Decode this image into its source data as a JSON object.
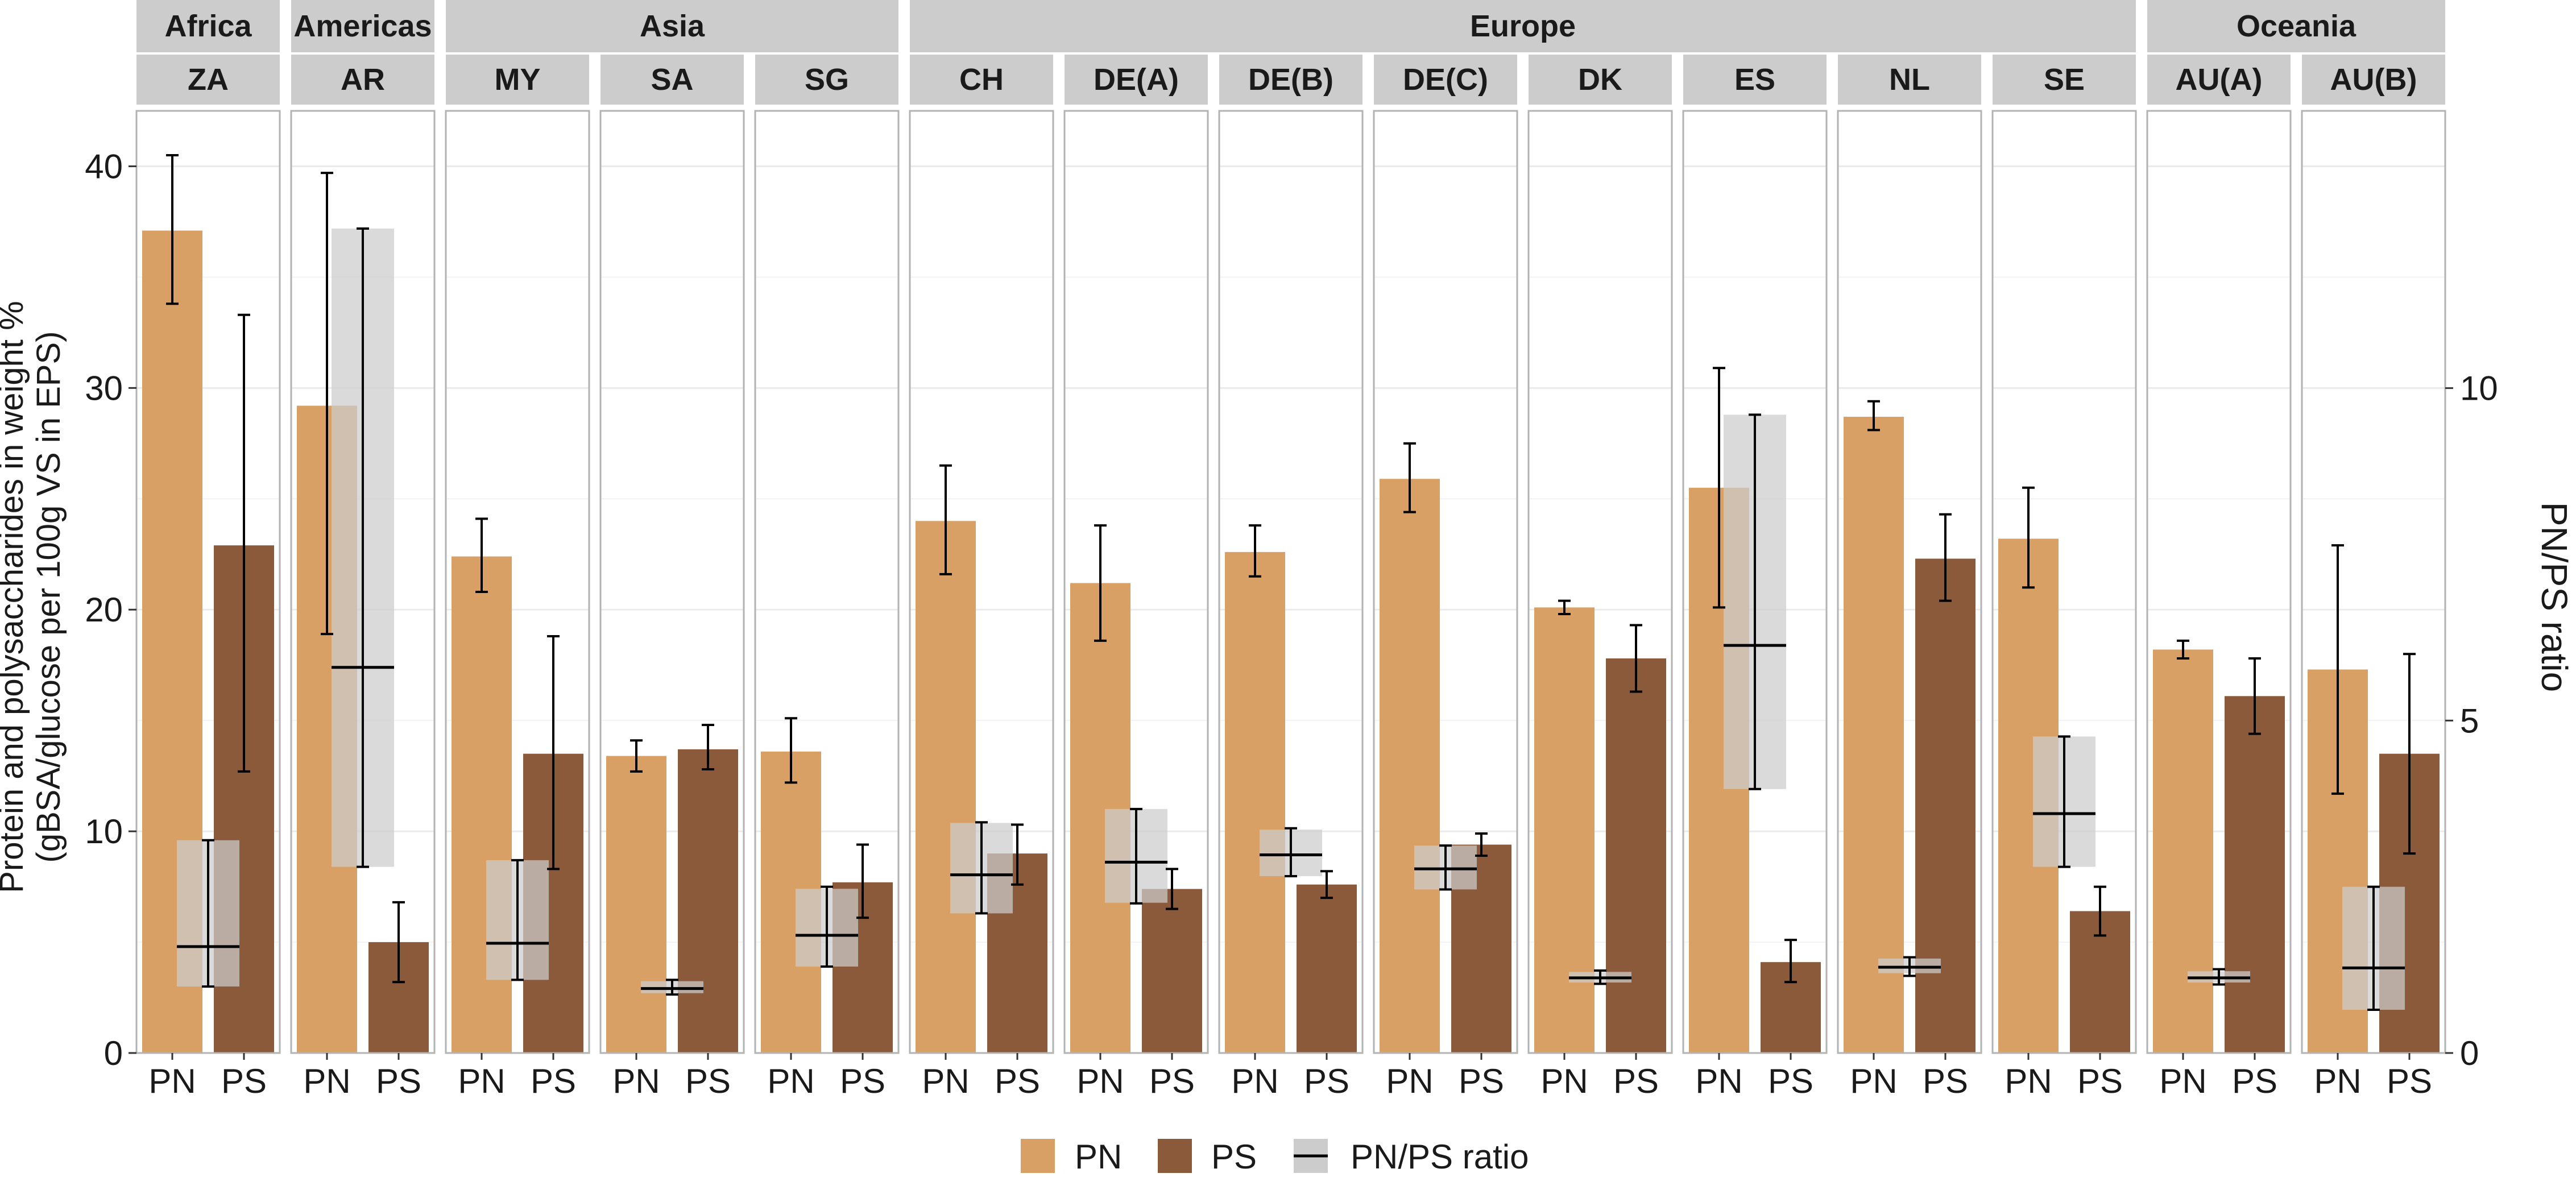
{
  "chart_data": {
    "type": "bar",
    "categories": [
      "PN",
      "PS"
    ],
    "ylabel_lines": [
      "Protein and polysaccharides in weight %",
      "(gBSA/glucose per 100g VS in EPS)"
    ],
    "y2label": "PN/PS ratio",
    "ylim": [
      0,
      42.5
    ],
    "yticks": [
      0,
      10,
      20,
      30,
      40
    ],
    "y2lim": [
      0,
      14.17
    ],
    "y2ticks": [
      0,
      5,
      10
    ],
    "colors": {
      "PN": "#d9a066",
      "PS": "#8b5a3a",
      "ratio": "#cccccc",
      "strip": "#cccccc",
      "panel_border": "#b3b3b3",
      "grid": "#ebebeb"
    },
    "legend": {
      "position": "bottom",
      "items": [
        {
          "key": "PN",
          "label": "PN"
        },
        {
          "key": "PS",
          "label": "PS"
        },
        {
          "key": "ratio",
          "label": "PN/PS ratio"
        }
      ]
    },
    "groups": [
      {
        "name": "Africa",
        "sites": [
          "ZA"
        ]
      },
      {
        "name": "Americas",
        "sites": [
          "AR"
        ]
      },
      {
        "name": "Asia",
        "sites": [
          "MY",
          "SA",
          "SG"
        ]
      },
      {
        "name": "Europe",
        "sites": [
          "CH",
          "DE(A)",
          "DE(B)",
          "DE(C)",
          "DK",
          "ES",
          "NL",
          "SE"
        ]
      },
      {
        "name": "Oceania",
        "sites": [
          "AU(A)",
          "AU(B)"
        ]
      }
    ],
    "sites": [
      {
        "name": "ZA",
        "PN": 37.1,
        "PN_err": [
          33.8,
          40.5
        ],
        "PS": 22.9,
        "PS_err": [
          12.7,
          33.3
        ],
        "ratio": 1.6,
        "ratio_box": [
          1.0,
          3.2
        ],
        "ratio_err": [
          1.0,
          3.2
        ]
      },
      {
        "name": "AR",
        "PN": 29.2,
        "PN_err": [
          18.9,
          39.7
        ],
        "PS": 5.0,
        "PS_err": [
          3.2,
          6.8
        ],
        "ratio": 5.8,
        "ratio_box": [
          2.8,
          12.4
        ],
        "ratio_err": [
          2.8,
          12.4
        ]
      },
      {
        "name": "MY",
        "PN": 22.4,
        "PN_err": [
          20.8,
          24.1
        ],
        "PS": 13.5,
        "PS_err": [
          8.3,
          18.8
        ],
        "ratio": 1.65,
        "ratio_box": [
          1.1,
          2.9
        ],
        "ratio_err": [
          1.1,
          2.9
        ]
      },
      {
        "name": "SA",
        "PN": 13.4,
        "PN_err": [
          12.7,
          14.1
        ],
        "PS": 13.7,
        "PS_err": [
          12.8,
          14.8
        ],
        "ratio": 0.97,
        "ratio_box": [
          0.9,
          1.08
        ],
        "ratio_err": [
          0.88,
          1.1
        ]
      },
      {
        "name": "SG",
        "PN": 13.6,
        "PN_err": [
          12.2,
          15.1
        ],
        "PS": 7.7,
        "PS_err": [
          6.1,
          9.4
        ],
        "ratio": 1.77,
        "ratio_box": [
          1.3,
          2.47
        ],
        "ratio_err": [
          1.3,
          2.5
        ]
      },
      {
        "name": "CH",
        "PN": 24.0,
        "PN_err": [
          21.6,
          26.5
        ],
        "PS": 9.0,
        "PS_err": [
          7.6,
          10.3
        ],
        "ratio": 2.68,
        "ratio_box": [
          2.1,
          3.46
        ],
        "ratio_err": [
          2.1,
          3.47
        ]
      },
      {
        "name": "DE(A)",
        "PN": 21.2,
        "PN_err": [
          18.6,
          23.8
        ],
        "PS": 7.4,
        "PS_err": [
          6.5,
          8.3
        ],
        "ratio": 2.87,
        "ratio_box": [
          2.26,
          3.67
        ],
        "ratio_err": [
          2.25,
          3.67
        ]
      },
      {
        "name": "DE(B)",
        "PN": 22.6,
        "PN_err": [
          21.5,
          23.8
        ],
        "PS": 7.6,
        "PS_err": [
          7.0,
          8.2
        ],
        "ratio": 2.98,
        "ratio_box": [
          2.66,
          3.36
        ],
        "ratio_err": [
          2.66,
          3.38
        ]
      },
      {
        "name": "DE(C)",
        "PN": 25.9,
        "PN_err": [
          24.4,
          27.5
        ],
        "PS": 9.4,
        "PS_err": [
          8.9,
          9.9
        ],
        "ratio": 2.77,
        "ratio_box": [
          2.46,
          3.12
        ],
        "ratio_err": [
          2.46,
          3.12
        ]
      },
      {
        "name": "DK",
        "PN": 20.1,
        "PN_err": [
          19.8,
          20.4
        ],
        "PS": 17.8,
        "PS_err": [
          16.3,
          19.3
        ],
        "ratio": 1.13,
        "ratio_box": [
          1.06,
          1.22
        ],
        "ratio_err": [
          1.04,
          1.24
        ]
      },
      {
        "name": "ES",
        "PN": 25.5,
        "PN_err": [
          20.1,
          30.9
        ],
        "PS": 4.1,
        "PS_err": [
          3.2,
          5.1
        ],
        "ratio": 6.13,
        "ratio_box": [
          3.97,
          9.6
        ],
        "ratio_err": [
          3.97,
          9.6
        ]
      },
      {
        "name": "NL",
        "PN": 28.7,
        "PN_err": [
          28.1,
          29.4
        ],
        "PS": 22.3,
        "PS_err": [
          20.4,
          24.3
        ],
        "ratio": 1.29,
        "ratio_box": [
          1.2,
          1.42
        ],
        "ratio_err": [
          1.16,
          1.44
        ]
      },
      {
        "name": "SE",
        "PN": 23.2,
        "PN_err": [
          21.0,
          25.5
        ],
        "PS": 6.4,
        "PS_err": [
          5.3,
          7.5
        ],
        "ratio": 3.6,
        "ratio_box": [
          2.8,
          4.76
        ],
        "ratio_err": [
          2.8,
          4.76
        ]
      },
      {
        "name": "AU(A)",
        "PN": 18.2,
        "PN_err": [
          17.8,
          18.6
        ],
        "PS": 16.1,
        "PS_err": [
          14.4,
          17.8
        ],
        "ratio": 1.13,
        "ratio_box": [
          1.06,
          1.23
        ],
        "ratio_err": [
          1.03,
          1.26
        ]
      },
      {
        "name": "AU(B)",
        "PN": 17.3,
        "PN_err": [
          11.7,
          22.9
        ],
        "PS": 13.5,
        "PS_err": [
          9.0,
          18.0
        ],
        "ratio": 1.28,
        "ratio_box": [
          0.65,
          2.5
        ],
        "ratio_err": [
          0.65,
          2.5
        ]
      }
    ]
  }
}
